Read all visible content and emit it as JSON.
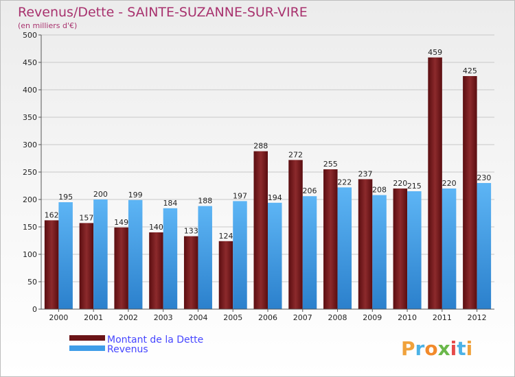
{
  "chart_data": {
    "type": "bar",
    "title": "Revenus/Dette - SAINTE-SUZANNE-SUR-VIRE",
    "subtitle": "(en milliers d'€)",
    "categories": [
      "2000",
      "2001",
      "2002",
      "2003",
      "2004",
      "2005",
      "2006",
      "2007",
      "2008",
      "2009",
      "2010",
      "2011",
      "2012"
    ],
    "series": [
      {
        "name": "Montant de la Dette",
        "values": [
          162,
          157,
          149,
          140,
          133,
          124,
          288,
          272,
          255,
          237,
          220,
          459,
          425
        ],
        "color": "#7a1a1d"
      },
      {
        "name": "Revenus",
        "values": [
          195,
          200,
          199,
          184,
          188,
          197,
          194,
          206,
          222,
          208,
          215,
          220,
          230
        ],
        "color": "#3f9de8"
      }
    ],
    "ylim": [
      0,
      500
    ],
    "yticks": [
      0,
      50,
      100,
      150,
      200,
      250,
      300,
      350,
      400,
      450,
      500
    ],
    "grid": true,
    "legend_position": "bottom-left"
  },
  "brand": {
    "letters": [
      "P",
      "r",
      "o",
      "x",
      "i",
      "t",
      "i"
    ],
    "colors": [
      "#f0a23c",
      "#4cb2e6",
      "#f28a2b",
      "#6ab84a",
      "#e64a4a",
      "#4cb2e6",
      "#f0a23c"
    ]
  }
}
